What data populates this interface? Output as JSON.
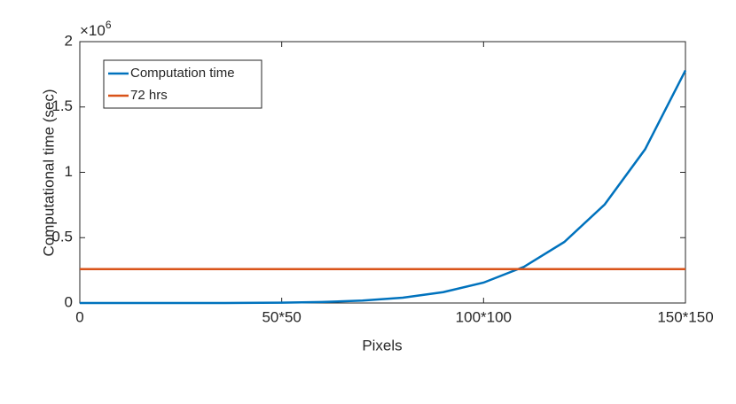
{
  "chart_data": {
    "type": "line",
    "x_label": "Pixels",
    "y_label": "Computational time (sec)",
    "y_multiplier": {
      "base": "×10",
      "exponent": "6"
    },
    "x": [
      0,
      10,
      20,
      30,
      40,
      50,
      60,
      70,
      80,
      90,
      100,
      110,
      120,
      130,
      140,
      150
    ],
    "series": [
      {
        "name": "Computation time",
        "color": "#0072BD",
        "x": [
          0,
          10,
          20,
          30,
          40,
          50,
          60,
          70,
          80,
          90,
          100,
          110,
          120,
          130,
          140,
          150
        ],
        "values": [
          0,
          0,
          0,
          0.0001,
          0.0006,
          0.0024,
          0.0073,
          0.0185,
          0.041,
          0.083,
          0.156,
          0.277,
          0.467,
          0.754,
          1.176,
          1.78
        ]
      },
      {
        "name": "72 hrs",
        "color": "#D95319",
        "x": [
          0,
          150
        ],
        "values": [
          0.2592,
          0.2592
        ]
      }
    ],
    "xlim": [
      0,
      150
    ],
    "xticks": [
      0,
      {
        "value": 50,
        "label": "50*50"
      },
      {
        "value": 100,
        "label": "100*100"
      },
      {
        "value": 150,
        "label": "150*150"
      }
    ],
    "ylim": [
      0,
      2
    ],
    "yticks": [
      0,
      0.5,
      1,
      1.5,
      2
    ],
    "legend": "upper-left",
    "grid": false
  }
}
